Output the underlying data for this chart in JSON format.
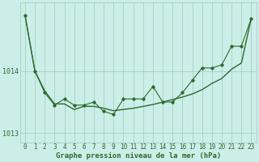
{
  "x": [
    0,
    1,
    2,
    3,
    4,
    5,
    6,
    7,
    8,
    9,
    10,
    11,
    12,
    13,
    14,
    15,
    16,
    17,
    18,
    19,
    20,
    21,
    22,
    23
  ],
  "y_detailed": [
    1014.9,
    1014.0,
    1013.65,
    1013.45,
    1013.55,
    1013.45,
    1013.45,
    1013.5,
    1013.35,
    1013.3,
    1013.55,
    1013.55,
    1013.55,
    1013.75,
    1013.5,
    1013.5,
    1013.65,
    1013.85,
    1014.05,
    1014.05,
    1014.1,
    1014.4,
    1014.4,
    1014.85
  ],
  "y_trend": [
    1014.9,
    1014.0,
    1013.68,
    1013.47,
    1013.47,
    1013.38,
    1013.43,
    1013.43,
    1013.4,
    1013.36,
    1013.38,
    1013.4,
    1013.43,
    1013.46,
    1013.5,
    1013.54,
    1013.58,
    1013.63,
    1013.7,
    1013.8,
    1013.88,
    1014.03,
    1014.13,
    1014.85
  ],
  "line_color": "#2d6a2d",
  "bg_color": "#cceee8",
  "grid_color": "#99ccbb",
  "xlabel": "Graphe pression niveau de la mer (hPa)",
  "yticks": [
    1013,
    1014
  ],
  "ylim": [
    1012.85,
    1015.1
  ],
  "xlim": [
    -0.5,
    23.5
  ],
  "tick_fontsize": 5.5,
  "xlabel_fontsize": 6.5
}
